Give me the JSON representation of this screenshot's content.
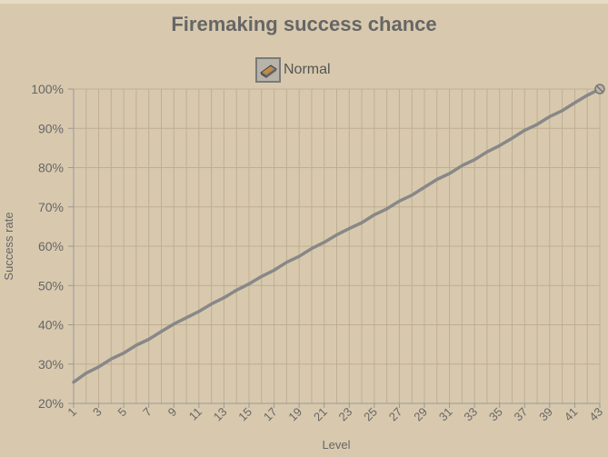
{
  "chart_data": {
    "type": "line",
    "title": "Firemaking success chance",
    "xlabel": "Level",
    "ylabel": "Success rate",
    "x_range": [
      1,
      43
    ],
    "ylim": [
      20,
      100
    ],
    "yticks": [
      "20%",
      "30%",
      "40%",
      "50%",
      "60%",
      "70%",
      "80%",
      "90%",
      "100%"
    ],
    "xticks": [
      "1",
      "3",
      "5",
      "7",
      "9",
      "11",
      "13",
      "15",
      "17",
      "19",
      "21",
      "23",
      "25",
      "27",
      "29",
      "31",
      "33",
      "35",
      "37",
      "39",
      "41",
      "43"
    ],
    "grid": true,
    "legend": "top-center",
    "series": [
      {
        "name": "Normal",
        "color": "#888888",
        "icon": "tinderbox-icon",
        "x": [
          1,
          2,
          3,
          4,
          5,
          6,
          7,
          8,
          9,
          10,
          11,
          12,
          13,
          14,
          15,
          16,
          17,
          18,
          19,
          20,
          21,
          22,
          23,
          24,
          25,
          26,
          27,
          28,
          29,
          30,
          31,
          32,
          33,
          34,
          35,
          36,
          37,
          38,
          39,
          40,
          41,
          42,
          43
        ],
        "values": [
          25.4,
          27.7,
          29.3,
          31.3,
          32.8,
          34.8,
          36.3,
          38.3,
          40.2,
          41.8,
          43.4,
          45.3,
          46.9,
          48.8,
          50.4,
          52.3,
          53.9,
          55.9,
          57.4,
          59.4,
          61.0,
          62.9,
          64.5,
          66.0,
          68.0,
          69.5,
          71.5,
          73.0,
          75.0,
          77.0,
          78.5,
          80.5,
          82.0,
          84.0,
          85.6,
          87.5,
          89.5,
          91.0,
          93.0,
          94.5,
          96.5,
          98.4,
          100.0
        ]
      }
    ]
  }
}
